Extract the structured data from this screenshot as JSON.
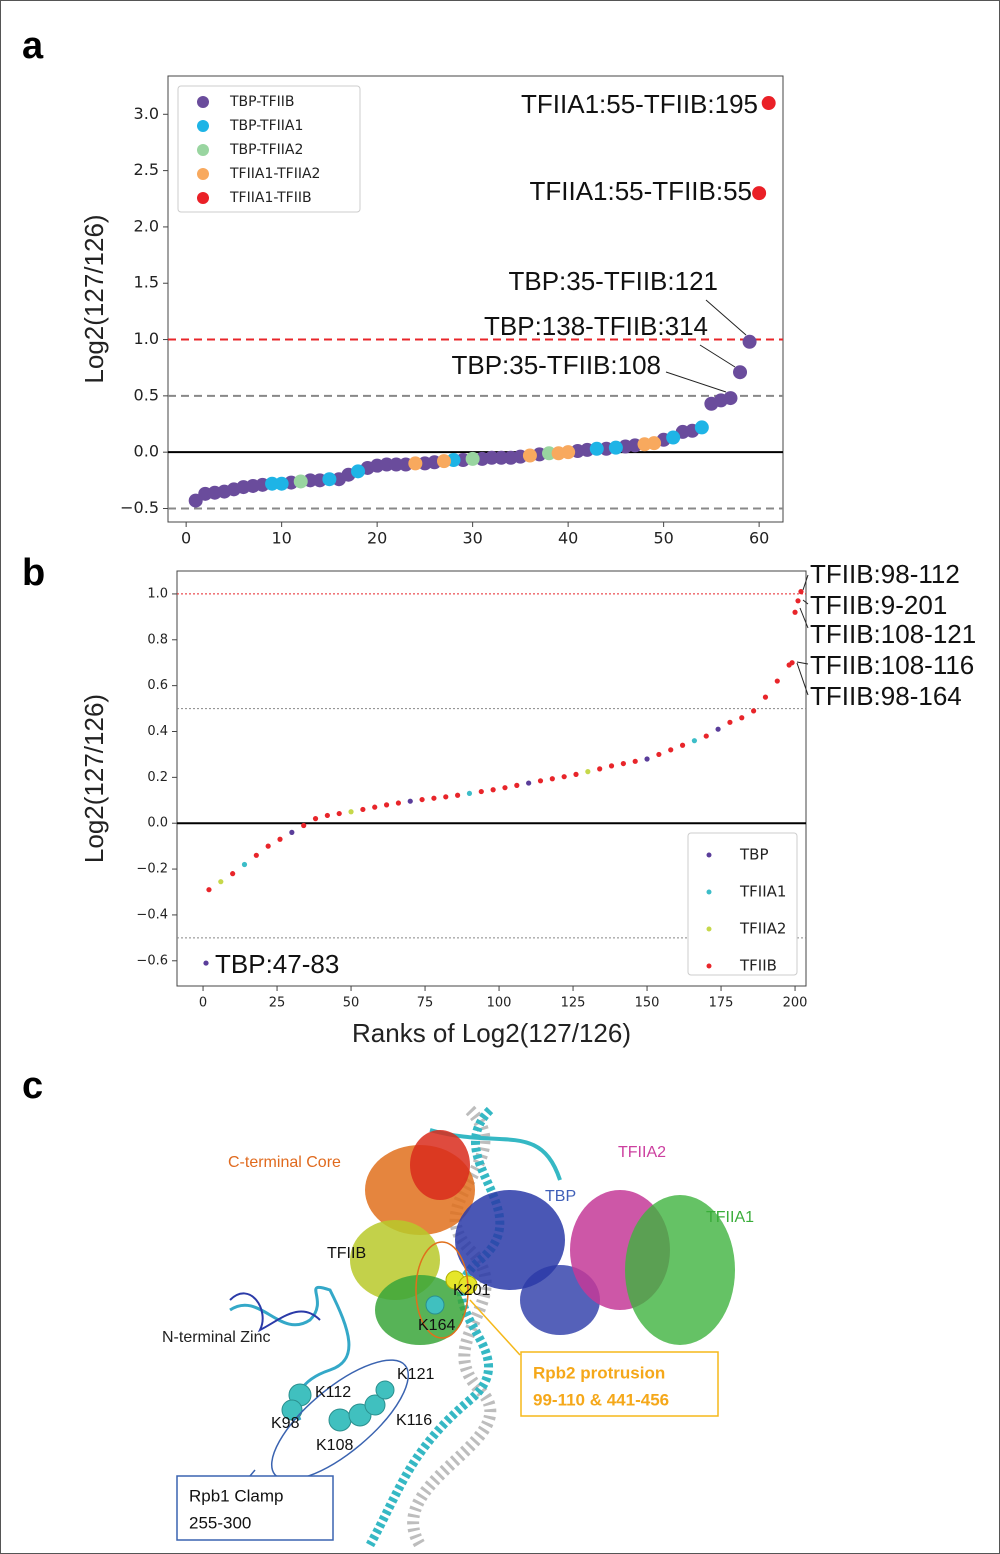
{
  "panels": [
    "a",
    "b",
    "c"
  ],
  "chart_data": [
    {
      "type": "scatter",
      "ylabel": "Log2(127/126)",
      "xlim": [
        -1.9,
        62.5
      ],
      "ylim": [
        -0.62,
        3.34
      ],
      "xticks": [
        0,
        10,
        20,
        30,
        40,
        50,
        60
      ],
      "yticks": [
        {
          "value": -0.5,
          "label": "−0.5"
        },
        {
          "value": 0,
          "label": "0.0"
        },
        {
          "value": 0.5,
          "label": "0.5"
        },
        {
          "value": 1,
          "label": "1.0"
        },
        {
          "value": 1.5,
          "label": "1.5"
        },
        {
          "value": 2,
          "label": "2.0"
        },
        {
          "value": 2.5,
          "label": "2.5"
        },
        {
          "value": 3,
          "label": "3.0"
        }
      ],
      "hlines": [
        {
          "y": 1,
          "color": "#e8252a",
          "dashed": true
        },
        {
          "y": 0.5,
          "color": "#888888",
          "dashed": true
        },
        {
          "y": -0.5,
          "color": "#888888",
          "dashed": true
        },
        {
          "y": 0,
          "color": "#000000",
          "dashed": false
        }
      ],
      "legend": "upper left",
      "series": [
        {
          "name": "TBP-TFIIB",
          "color": "#6a4c9c",
          "x": [
            1,
            2,
            3,
            4,
            5,
            6,
            7,
            8,
            11,
            13,
            14,
            16,
            17,
            19,
            20,
            21,
            22,
            23,
            25,
            26,
            29,
            31,
            32,
            33,
            34,
            35,
            37,
            41,
            42,
            44,
            46,
            47,
            50,
            52,
            53,
            55,
            56,
            57,
            58,
            59
          ],
          "values": [
            -0.43,
            -0.37,
            -0.36,
            -0.35,
            -0.33,
            -0.31,
            -0.3,
            -0.29,
            -0.27,
            -0.25,
            -0.25,
            -0.24,
            -0.2,
            -0.14,
            -0.12,
            -0.11,
            -0.11,
            -0.11,
            -0.1,
            -0.09,
            -0.07,
            -0.06,
            -0.05,
            -0.05,
            -0.05,
            -0.04,
            -0.02,
            0.01,
            0.02,
            0.03,
            0.05,
            0.06,
            0.11,
            0.18,
            0.19,
            0.43,
            0.46,
            0.48,
            0.71,
            0.98
          ]
        },
        {
          "name": "TBP-TFIIA1",
          "color": "#1eb4e6",
          "x": [
            9,
            10,
            15,
            18,
            28,
            43,
            45,
            51,
            54
          ],
          "values": [
            -0.28,
            -0.28,
            -0.24,
            -0.17,
            -0.07,
            0.03,
            0.04,
            0.13,
            0.22
          ]
        },
        {
          "name": "TBP-TFIIA2",
          "color": "#99d5a0",
          "x": [
            12,
            30,
            38
          ],
          "values": [
            -0.26,
            -0.06,
            -0.01
          ]
        },
        {
          "name": "TFIIA1-TFIIA2",
          "color": "#f8a95e",
          "x": [
            24,
            27,
            36,
            39,
            40,
            48,
            49
          ],
          "values": [
            -0.1,
            -0.08,
            -0.03,
            -0.01,
            0.0,
            0.07,
            0.08
          ]
        },
        {
          "name": "TFIIA1-TFIIB",
          "color": "#ea2027",
          "x": [
            60,
            61
          ],
          "values": [
            2.3,
            3.1
          ]
        }
      ],
      "annotations": [
        "TFIIA1:55-TFIIB:195",
        "TFIIA1:55-TFIIB:55",
        "TBP:35-TFIIB:121",
        "TBP:138-TFIIB:314",
        "TBP:35-TFIIB:108"
      ]
    },
    {
      "type": "scatter",
      "ylabel": "Log2(127/126)",
      "xlabel": "Ranks of Log2(127/126)",
      "xlim": [
        -8.8,
        203.7
      ],
      "ylim": [
        -0.71,
        1.1
      ],
      "xticks": [
        0,
        25,
        50,
        75,
        100,
        125,
        150,
        175,
        200
      ],
      "yticks": [
        {
          "value": -0.6,
          "label": "−0.6"
        },
        {
          "value": -0.4,
          "label": "−0.4"
        },
        {
          "value": -0.2,
          "label": "−0.2"
        },
        {
          "value": 0,
          "label": "0.0"
        },
        {
          "value": 0.2,
          "label": "0.2"
        },
        {
          "value": 0.4,
          "label": "0.4"
        },
        {
          "value": 0.6,
          "label": "0.6"
        },
        {
          "value": 0.8,
          "label": "0.8"
        },
        {
          "value": 1,
          "label": "1.0"
        }
      ],
      "hlines": [
        {
          "y": 1,
          "color": "#e8252a",
          "dashed": true
        },
        {
          "y": 0.5,
          "color": "#888888",
          "dashed": true
        },
        {
          "y": -0.5,
          "color": "#888888",
          "dashed": true
        },
        {
          "y": 0,
          "color": "#000000",
          "dashed": false
        }
      ],
      "legend": "lower right",
      "series": [
        {
          "name": "TBP",
          "color": "#5a3d9a",
          "x": [
            1,
            30,
            70,
            110,
            150,
            174
          ],
          "values": [
            -0.61,
            -0.04,
            0.096,
            0.175,
            0.28,
            0.41
          ]
        },
        {
          "name": "TFIIA1",
          "color": "#3cbdc8",
          "x": [
            14,
            90,
            166
          ],
          "values": [
            -0.18,
            0.13,
            0.36
          ]
        },
        {
          "name": "TFIIA2",
          "color": "#c6d84a",
          "x": [
            6,
            50,
            130
          ],
          "values": [
            -0.255,
            0.05,
            0.225
          ]
        },
        {
          "name": "TFIIB",
          "color": "#e8252a",
          "x": [
            2,
            10,
            18,
            22,
            26,
            34,
            38,
            42,
            46,
            54,
            58,
            62,
            66,
            74,
            78,
            82,
            86,
            94,
            98,
            102,
            106,
            114,
            118,
            122,
            126,
            134,
            138,
            142,
            146,
            154,
            158,
            162,
            170,
            178,
            182,
            186,
            190,
            194,
            198,
            199,
            200,
            201,
            202
          ],
          "values": [
            -0.29,
            -0.22,
            -0.14,
            -0.1,
            -0.07,
            -0.01,
            0.02,
            0.034,
            0.042,
            0.06,
            0.07,
            0.08,
            0.088,
            0.103,
            0.109,
            0.115,
            0.122,
            0.138,
            0.146,
            0.155,
            0.165,
            0.185,
            0.194,
            0.203,
            0.213,
            0.237,
            0.25,
            0.26,
            0.27,
            0.3,
            0.32,
            0.34,
            0.38,
            0.44,
            0.46,
            0.49,
            0.55,
            0.62,
            0.69,
            0.7,
            0.92,
            0.97,
            1.01
          ]
        }
      ],
      "annotations": [
        "TFIIB:98-112",
        "TFIIB:9-201",
        "TFIIB:108-121",
        "TFIIB:108-116",
        "TFIIB:98-164",
        "TBP:47-83"
      ]
    }
  ],
  "structure": {
    "labels": [
      "C-terminal Core",
      "TFIIB",
      "TBP",
      "TFIIA2",
      "TFIIA1",
      "N-terminal Zinc",
      "K201",
      "K164",
      "K112",
      "K121",
      "K98",
      "K116",
      "K108"
    ],
    "rpb2_box": [
      "Rpb2 protrusion",
      "99-110 & 441-456"
    ],
    "rpb1_box": [
      "Rpb1 Clamp",
      "255-300"
    ]
  }
}
